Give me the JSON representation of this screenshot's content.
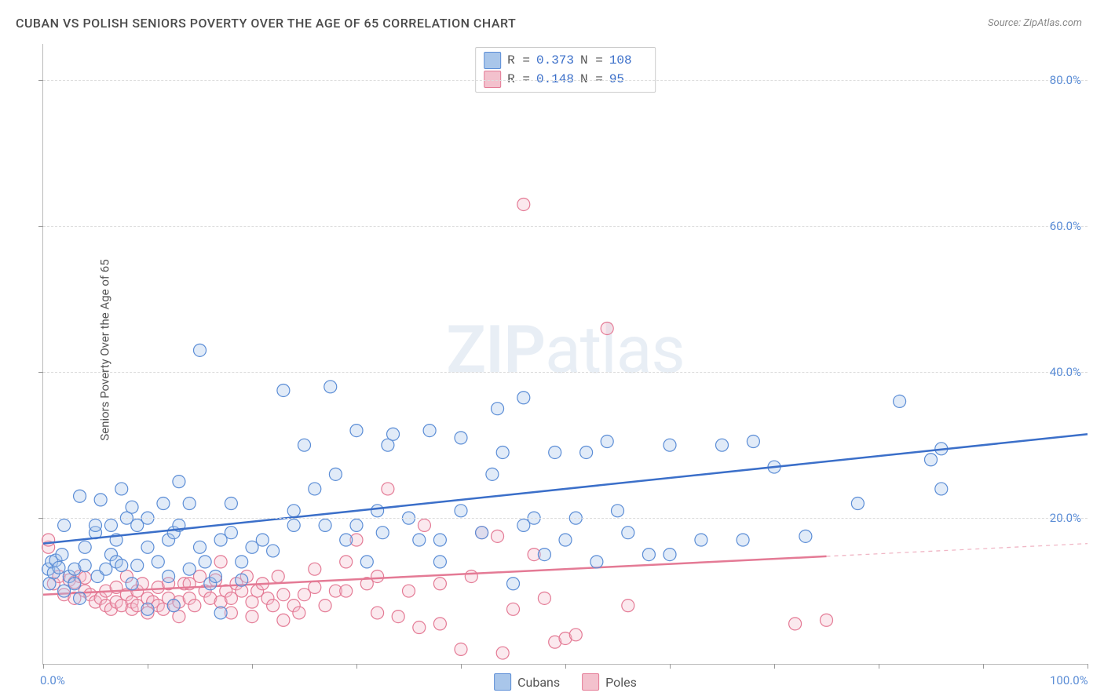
{
  "title": "CUBAN VS POLISH SENIORS POVERTY OVER THE AGE OF 65 CORRELATION CHART",
  "source": "Source: ZipAtlas.com",
  "y_axis_label": "Seniors Poverty Over the Age of 65",
  "watermark": {
    "zip": "ZIP",
    "atlas": "atlas"
  },
  "chart": {
    "type": "scatter",
    "background_color": "#ffffff",
    "grid_color": "#dddddd",
    "axis_color": "#bbbbbb",
    "xlim": [
      0,
      100
    ],
    "ylim": [
      0,
      85
    ],
    "x_tick_positions": [
      0,
      10,
      20,
      30,
      40,
      50,
      60,
      70,
      80,
      90,
      100
    ],
    "x_tick_labels": {
      "0": "0.0%",
      "100": "100.0%"
    },
    "y_tick_positions": [
      20,
      40,
      60,
      80
    ],
    "y_tick_labels": {
      "20": "20.0%",
      "40": "40.0%",
      "60": "60.0%",
      "80": "80.0%"
    },
    "tick_label_color": "#5b8dd6",
    "tick_label_fontsize": 15,
    "marker_radius": 8,
    "marker_stroke_width": 1.2,
    "marker_fill_opacity": 0.35,
    "line_width": 2.5,
    "series": {
      "cubans": {
        "label": "Cubans",
        "fill": "#a9c6ea",
        "stroke": "#5b8dd6",
        "line_color": "#3b6fc9",
        "R": "0.373",
        "N": "108",
        "trend": {
          "x1": 0,
          "y1": 16.5,
          "x2": 100,
          "y2": 31.5,
          "x_solid_end": 100
        },
        "points": [
          [
            0.5,
            13
          ],
          [
            0.8,
            14
          ],
          [
            1,
            12.5
          ],
          [
            1.2,
            14.2
          ],
          [
            1.5,
            13.2
          ],
          [
            1.8,
            15
          ],
          [
            0.6,
            11
          ],
          [
            2,
            10
          ],
          [
            2.5,
            12
          ],
          [
            2,
            19
          ],
          [
            3,
            11
          ],
          [
            3,
            13
          ],
          [
            3.5,
            23
          ],
          [
            3.5,
            9
          ],
          [
            4,
            13.5
          ],
          [
            4,
            16
          ],
          [
            5,
            18
          ],
          [
            5.2,
            12
          ],
          [
            5.5,
            22.5
          ],
          [
            5,
            19
          ],
          [
            6,
            13
          ],
          [
            6.5,
            15
          ],
          [
            6.5,
            19
          ],
          [
            7,
            14
          ],
          [
            7,
            17
          ],
          [
            7.5,
            13.5
          ],
          [
            7.5,
            24
          ],
          [
            8,
            20
          ],
          [
            8.5,
            11
          ],
          [
            8.5,
            21.5
          ],
          [
            9,
            13.5
          ],
          [
            9,
            19
          ],
          [
            10,
            7.5
          ],
          [
            10,
            16
          ],
          [
            10,
            20
          ],
          [
            11,
            14
          ],
          [
            11.5,
            22
          ],
          [
            12,
            12
          ],
          [
            12,
            17
          ],
          [
            12.5,
            8
          ],
          [
            12.5,
            18
          ],
          [
            13,
            19
          ],
          [
            13,
            25
          ],
          [
            14,
            13
          ],
          [
            14,
            22
          ],
          [
            15,
            43
          ],
          [
            15,
            16
          ],
          [
            15.5,
            14
          ],
          [
            16,
            11
          ],
          [
            16.5,
            12
          ],
          [
            17,
            7
          ],
          [
            17,
            17
          ],
          [
            18,
            18
          ],
          [
            18,
            22
          ],
          [
            19,
            11.5
          ],
          [
            19,
            14
          ],
          [
            20,
            16
          ],
          [
            21,
            17
          ],
          [
            22,
            15.5
          ],
          [
            23,
            37.5
          ],
          [
            24,
            21
          ],
          [
            24,
            19
          ],
          [
            25,
            30
          ],
          [
            26,
            24
          ],
          [
            27,
            19
          ],
          [
            27.5,
            38
          ],
          [
            28,
            26
          ],
          [
            29,
            17
          ],
          [
            30,
            32
          ],
          [
            30,
            19
          ],
          [
            31,
            14
          ],
          [
            32,
            21
          ],
          [
            32.5,
            18
          ],
          [
            33,
            30
          ],
          [
            33.5,
            31.5
          ],
          [
            35,
            20
          ],
          [
            36,
            17
          ],
          [
            37,
            32
          ],
          [
            38,
            14
          ],
          [
            38,
            17
          ],
          [
            40,
            31
          ],
          [
            40,
            21
          ],
          [
            42,
            18
          ],
          [
            43,
            26
          ],
          [
            43.5,
            35
          ],
          [
            44,
            29
          ],
          [
            45,
            11
          ],
          [
            46,
            36.5
          ],
          [
            46,
            19
          ],
          [
            47,
            20
          ],
          [
            48,
            15
          ],
          [
            49,
            29
          ],
          [
            50,
            17
          ],
          [
            51,
            20
          ],
          [
            52,
            29
          ],
          [
            53,
            14
          ],
          [
            54,
            30.5
          ],
          [
            55,
            21
          ],
          [
            56,
            18
          ],
          [
            58,
            15
          ],
          [
            60,
            30
          ],
          [
            60,
            15
          ],
          [
            63,
            17
          ],
          [
            65,
            30
          ],
          [
            67,
            17
          ],
          [
            68,
            30.5
          ],
          [
            70,
            27
          ],
          [
            73,
            17.5
          ],
          [
            78,
            22
          ],
          [
            82,
            36
          ],
          [
            85,
            28
          ],
          [
            86,
            24
          ],
          [
            86,
            29.5
          ]
        ]
      },
      "poles": {
        "label": "Poles",
        "fill": "#f3c1cd",
        "stroke": "#e47a95",
        "line_color": "#e47a95",
        "R": "0.148",
        "N": " 95",
        "trend": {
          "x1": 0,
          "y1": 9.5,
          "x2": 100,
          "y2": 16.5,
          "x_solid_end": 75
        },
        "points": [
          [
            0.5,
            16
          ],
          [
            0.5,
            17
          ],
          [
            1,
            11
          ],
          [
            1.5,
            12
          ],
          [
            2,
            9.5
          ],
          [
            2.5,
            11.5
          ],
          [
            3,
            9
          ],
          [
            3,
            11.2
          ],
          [
            3.5,
            12
          ],
          [
            4,
            10
          ],
          [
            4,
            11.8
          ],
          [
            4.5,
            9.5
          ],
          [
            5,
            8.5
          ],
          [
            5.5,
            9
          ],
          [
            6,
            10
          ],
          [
            6,
            8
          ],
          [
            6.5,
            7.5
          ],
          [
            7,
            10.5
          ],
          [
            7,
            8.5
          ],
          [
            7.5,
            8
          ],
          [
            8,
            9.5
          ],
          [
            8,
            12
          ],
          [
            8.5,
            8.5
          ],
          [
            8.5,
            7.5
          ],
          [
            9,
            10
          ],
          [
            9,
            8
          ],
          [
            9.5,
            11
          ],
          [
            10,
            9
          ],
          [
            10,
            7
          ],
          [
            10.5,
            8.5
          ],
          [
            11,
            10.5
          ],
          [
            11,
            8
          ],
          [
            11.5,
            7.5
          ],
          [
            12,
            11
          ],
          [
            12,
            9
          ],
          [
            12.5,
            8
          ],
          [
            13,
            8.5
          ],
          [
            13,
            6.5
          ],
          [
            13.5,
            11
          ],
          [
            14,
            9
          ],
          [
            14,
            11
          ],
          [
            14.5,
            8
          ],
          [
            15,
            12
          ],
          [
            15.5,
            10
          ],
          [
            16,
            9
          ],
          [
            16.5,
            11.5
          ],
          [
            17,
            8.5
          ],
          [
            17,
            14
          ],
          [
            17.5,
            10
          ],
          [
            18,
            9
          ],
          [
            18,
            7
          ],
          [
            18.5,
            11
          ],
          [
            19,
            10
          ],
          [
            19.5,
            12
          ],
          [
            20,
            8.5
          ],
          [
            20,
            6.5
          ],
          [
            20.5,
            10
          ],
          [
            21,
            11
          ],
          [
            21.5,
            9
          ],
          [
            22,
            8
          ],
          [
            22.5,
            12
          ],
          [
            23,
            6
          ],
          [
            23,
            9.5
          ],
          [
            24,
            8
          ],
          [
            24.5,
            7
          ],
          [
            25,
            9.5
          ],
          [
            26,
            10.5
          ],
          [
            26,
            13
          ],
          [
            27,
            8
          ],
          [
            28,
            10
          ],
          [
            29,
            10
          ],
          [
            29,
            14
          ],
          [
            30,
            17
          ],
          [
            31,
            11
          ],
          [
            32,
            7
          ],
          [
            32,
            12
          ],
          [
            33,
            24
          ],
          [
            34,
            6.5
          ],
          [
            35,
            10
          ],
          [
            36,
            5
          ],
          [
            36.5,
            19
          ],
          [
            38,
            11
          ],
          [
            38,
            5.5
          ],
          [
            40,
            2
          ],
          [
            41,
            12
          ],
          [
            42,
            18
          ],
          [
            43.5,
            17.5
          ],
          [
            44,
            1.5
          ],
          [
            45,
            7.5
          ],
          [
            46,
            63
          ],
          [
            47,
            15
          ],
          [
            48,
            9
          ],
          [
            49,
            3
          ],
          [
            50,
            3.5
          ],
          [
            51,
            4
          ],
          [
            54,
            46
          ],
          [
            56,
            8
          ],
          [
            72,
            5.5
          ],
          [
            75,
            6
          ]
        ]
      }
    }
  },
  "legend_bottom": [
    {
      "label": "Cubans",
      "fill": "#a9c6ea",
      "stroke": "#5b8dd6"
    },
    {
      "label": "Poles",
      "fill": "#f3c1cd",
      "stroke": "#e47a95"
    }
  ]
}
